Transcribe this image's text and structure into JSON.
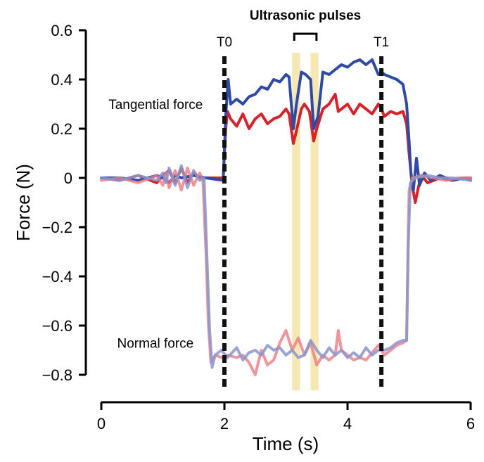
{
  "chart_data": {
    "type": "line",
    "title": "",
    "xlabel": "Time (s)",
    "ylabel": "Force (N)",
    "xlim": [
      0,
      6
    ],
    "ylim": [
      -0.8,
      0.6
    ],
    "xticks": [
      0,
      2,
      4,
      6
    ],
    "xtick_labels": [
      "0",
      "2",
      "4",
      "6"
    ],
    "yticks": [
      0.6,
      0.4,
      0.2,
      0,
      -0.2,
      -0.4,
      -0.6,
      -0.8
    ],
    "ytick_labels": [
      "0.6",
      "0.4",
      "0.2",
      "0",
      "−0.2",
      "−0.4",
      "−0.6",
      "−0.8"
    ],
    "grid": false,
    "legend": "none",
    "markers": [
      {
        "label": "T0",
        "x": 2.0
      },
      {
        "label": "T1",
        "x": 4.55
      }
    ],
    "pulses": {
      "label": "Ultrasonic pulses",
      "intervals": [
        [
          3.1,
          3.23
        ],
        [
          3.4,
          3.53
        ]
      ],
      "color": "#f3e4a6"
    },
    "annotations": [
      {
        "text": "Tangential force",
        "x": 1.65,
        "y": 0.28
      },
      {
        "text": "Normal force",
        "x": 1.5,
        "y": -0.69
      }
    ],
    "series": [
      {
        "color": "#d8222a",
        "opacity": 1,
        "points": [
          [
            0,
            0
          ],
          [
            0.3,
            -0.01
          ],
          [
            0.6,
            0.01
          ],
          [
            0.9,
            -0.02
          ],
          [
            1.0,
            0.01
          ],
          [
            1.1,
            0.03
          ],
          [
            1.2,
            -0.02
          ],
          [
            1.3,
            0.04
          ],
          [
            1.4,
            -0.02
          ],
          [
            1.5,
            0.02
          ],
          [
            1.6,
            0.0
          ],
          [
            1.8,
            0.0
          ],
          [
            1.98,
            0.0
          ],
          [
            2.02,
            0.2
          ],
          [
            2.05,
            0.27
          ],
          [
            2.1,
            0.24
          ],
          [
            2.2,
            0.21
          ],
          [
            2.3,
            0.26
          ],
          [
            2.4,
            0.2
          ],
          [
            2.5,
            0.24
          ],
          [
            2.6,
            0.26
          ],
          [
            2.7,
            0.22
          ],
          [
            2.8,
            0.24
          ],
          [
            2.9,
            0.25
          ],
          [
            3.0,
            0.28
          ],
          [
            3.05,
            0.26
          ],
          [
            3.12,
            0.14
          ],
          [
            3.16,
            0.18
          ],
          [
            3.25,
            0.28
          ],
          [
            3.3,
            0.3
          ],
          [
            3.38,
            0.27
          ],
          [
            3.45,
            0.15
          ],
          [
            3.5,
            0.2
          ],
          [
            3.6,
            0.28
          ],
          [
            3.7,
            0.3
          ],
          [
            3.8,
            0.34
          ],
          [
            3.85,
            0.27
          ],
          [
            3.9,
            0.28
          ],
          [
            4.0,
            0.3
          ],
          [
            4.1,
            0.26
          ],
          [
            4.2,
            0.3
          ],
          [
            4.3,
            0.28
          ],
          [
            4.4,
            0.26
          ],
          [
            4.5,
            0.3
          ],
          [
            4.55,
            0.28
          ],
          [
            4.6,
            0.25
          ],
          [
            4.7,
            0.27
          ],
          [
            4.8,
            0.26
          ],
          [
            4.9,
            0.27
          ],
          [
            4.96,
            0.22
          ],
          [
            5.0,
            0.1
          ],
          [
            5.05,
            -0.03
          ],
          [
            5.1,
            -0.1
          ],
          [
            5.15,
            -0.04
          ],
          [
            5.2,
            0.01
          ],
          [
            5.3,
            -0.02
          ],
          [
            5.5,
            0.0
          ],
          [
            5.7,
            -0.01
          ],
          [
            5.9,
            0.0
          ],
          [
            6.0,
            0.0
          ]
        ]
      },
      {
        "color": "#2f4aa6",
        "opacity": 1,
        "points": [
          [
            0,
            0
          ],
          [
            0.3,
            0.0
          ],
          [
            0.6,
            -0.01
          ],
          [
            0.9,
            0.01
          ],
          [
            1.0,
            0.0
          ],
          [
            1.1,
            -0.02
          ],
          [
            1.2,
            0.01
          ],
          [
            1.3,
            0.0
          ],
          [
            1.5,
            0.01
          ],
          [
            1.7,
            0.0
          ],
          [
            1.98,
            -0.01
          ],
          [
            2.02,
            0.25
          ],
          [
            2.06,
            0.4
          ],
          [
            2.1,
            0.3
          ],
          [
            2.2,
            0.32
          ],
          [
            2.3,
            0.3
          ],
          [
            2.4,
            0.33
          ],
          [
            2.5,
            0.34
          ],
          [
            2.6,
            0.37
          ],
          [
            2.7,
            0.36
          ],
          [
            2.8,
            0.4
          ],
          [
            2.9,
            0.39
          ],
          [
            3.0,
            0.42
          ],
          [
            3.05,
            0.41
          ],
          [
            3.12,
            0.2
          ],
          [
            3.17,
            0.3
          ],
          [
            3.25,
            0.43
          ],
          [
            3.32,
            0.42
          ],
          [
            3.4,
            0.4
          ],
          [
            3.45,
            0.2
          ],
          [
            3.52,
            0.25
          ],
          [
            3.6,
            0.43
          ],
          [
            3.7,
            0.42
          ],
          [
            3.8,
            0.44
          ],
          [
            3.9,
            0.46
          ],
          [
            4.0,
            0.45
          ],
          [
            4.1,
            0.47
          ],
          [
            4.2,
            0.48
          ],
          [
            4.3,
            0.46
          ],
          [
            4.4,
            0.48
          ],
          [
            4.45,
            0.45
          ],
          [
            4.5,
            0.42
          ],
          [
            4.55,
            0.43
          ],
          [
            4.6,
            0.42
          ],
          [
            4.7,
            0.41
          ],
          [
            4.8,
            0.4
          ],
          [
            4.9,
            0.38
          ],
          [
            4.96,
            0.3
          ],
          [
            5.0,
            0.15
          ],
          [
            5.03,
            0.02
          ],
          [
            5.07,
            -0.05
          ],
          [
            5.12,
            0.08
          ],
          [
            5.17,
            -0.03
          ],
          [
            5.25,
            0.02
          ],
          [
            5.35,
            -0.01
          ],
          [
            5.5,
            0.01
          ],
          [
            5.7,
            -0.01
          ],
          [
            5.9,
            0.0
          ],
          [
            6.0,
            -0.01
          ]
        ]
      },
      {
        "color": "#ee7b85",
        "opacity": 0.8,
        "points": [
          [
            0,
            -0.01
          ],
          [
            0.3,
            0.0
          ],
          [
            0.6,
            -0.02
          ],
          [
            0.9,
            0.01
          ],
          [
            1.0,
            -0.03
          ],
          [
            1.05,
            0.02
          ],
          [
            1.1,
            -0.04
          ],
          [
            1.2,
            0.03
          ],
          [
            1.3,
            -0.05
          ],
          [
            1.4,
            0.04
          ],
          [
            1.5,
            -0.03
          ],
          [
            1.6,
            0.02
          ],
          [
            1.65,
            -0.01
          ],
          [
            1.7,
            -0.3
          ],
          [
            1.74,
            -0.6
          ],
          [
            1.78,
            -0.75
          ],
          [
            1.85,
            -0.72
          ],
          [
            1.95,
            -0.73
          ],
          [
            2.05,
            -0.72
          ],
          [
            2.2,
            -0.73
          ],
          [
            2.3,
            -0.72
          ],
          [
            2.4,
            -0.75
          ],
          [
            2.5,
            -0.8
          ],
          [
            2.6,
            -0.7
          ],
          [
            2.7,
            -0.76
          ],
          [
            2.8,
            -0.74
          ],
          [
            2.9,
            -0.67
          ],
          [
            3.0,
            -0.62
          ],
          [
            3.1,
            -0.7
          ],
          [
            3.2,
            -0.65
          ],
          [
            3.3,
            -0.72
          ],
          [
            3.4,
            -0.67
          ],
          [
            3.5,
            -0.76
          ],
          [
            3.6,
            -0.72
          ],
          [
            3.7,
            -0.74
          ],
          [
            3.8,
            -0.72
          ],
          [
            3.85,
            -0.62
          ],
          [
            3.9,
            -0.7
          ],
          [
            4.0,
            -0.72
          ],
          [
            4.1,
            -0.74
          ],
          [
            4.2,
            -0.73
          ],
          [
            4.3,
            -0.74
          ],
          [
            4.4,
            -0.71
          ],
          [
            4.5,
            -0.68
          ],
          [
            4.6,
            -0.72
          ],
          [
            4.7,
            -0.7
          ],
          [
            4.8,
            -0.68
          ],
          [
            4.9,
            -0.67
          ],
          [
            4.96,
            -0.66
          ],
          [
            4.98,
            -0.3
          ],
          [
            5.0,
            -0.05
          ],
          [
            5.05,
            0.0
          ],
          [
            5.2,
            0.01
          ],
          [
            5.4,
            0.0
          ],
          [
            5.6,
            -0.01
          ],
          [
            5.8,
            0.0
          ],
          [
            6.0,
            0.0
          ]
        ]
      },
      {
        "color": "#8a95cc",
        "opacity": 0.85,
        "points": [
          [
            0,
            0.0
          ],
          [
            0.3,
            -0.01
          ],
          [
            0.6,
            0.01
          ],
          [
            0.9,
            -0.01
          ],
          [
            1.0,
            0.02
          ],
          [
            1.05,
            -0.02
          ],
          [
            1.1,
            0.04
          ],
          [
            1.2,
            -0.03
          ],
          [
            1.3,
            0.05
          ],
          [
            1.4,
            -0.04
          ],
          [
            1.5,
            0.03
          ],
          [
            1.6,
            -0.01
          ],
          [
            1.67,
            0.0
          ],
          [
            1.72,
            -0.35
          ],
          [
            1.76,
            -0.62
          ],
          [
            1.8,
            -0.77
          ],
          [
            1.85,
            -0.72
          ],
          [
            1.95,
            -0.7
          ],
          [
            2.05,
            -0.73
          ],
          [
            2.2,
            -0.69
          ],
          [
            2.3,
            -0.74
          ],
          [
            2.4,
            -0.71
          ],
          [
            2.5,
            -0.7
          ],
          [
            2.6,
            -0.72
          ],
          [
            2.7,
            -0.68
          ],
          [
            2.8,
            -0.7
          ],
          [
            2.9,
            -0.69
          ],
          [
            3.0,
            -0.72
          ],
          [
            3.1,
            -0.7
          ],
          [
            3.2,
            -0.73
          ],
          [
            3.3,
            -0.72
          ],
          [
            3.4,
            -0.66
          ],
          [
            3.5,
            -0.7
          ],
          [
            3.6,
            -0.73
          ],
          [
            3.7,
            -0.69
          ],
          [
            3.8,
            -0.72
          ],
          [
            3.9,
            -0.7
          ],
          [
            4.0,
            -0.73
          ],
          [
            4.1,
            -0.71
          ],
          [
            4.2,
            -0.73
          ],
          [
            4.3,
            -0.69
          ],
          [
            4.4,
            -0.72
          ],
          [
            4.5,
            -0.7
          ],
          [
            4.6,
            -0.7
          ],
          [
            4.7,
            -0.69
          ],
          [
            4.8,
            -0.67
          ],
          [
            4.9,
            -0.66
          ],
          [
            4.96,
            -0.66
          ],
          [
            4.99,
            -0.25
          ],
          [
            5.02,
            -0.02
          ],
          [
            5.1,
            0.0
          ],
          [
            5.3,
            0.01
          ],
          [
            5.5,
            0.0
          ],
          [
            5.7,
            0.0
          ],
          [
            6.0,
            -0.01
          ]
        ]
      }
    ]
  }
}
